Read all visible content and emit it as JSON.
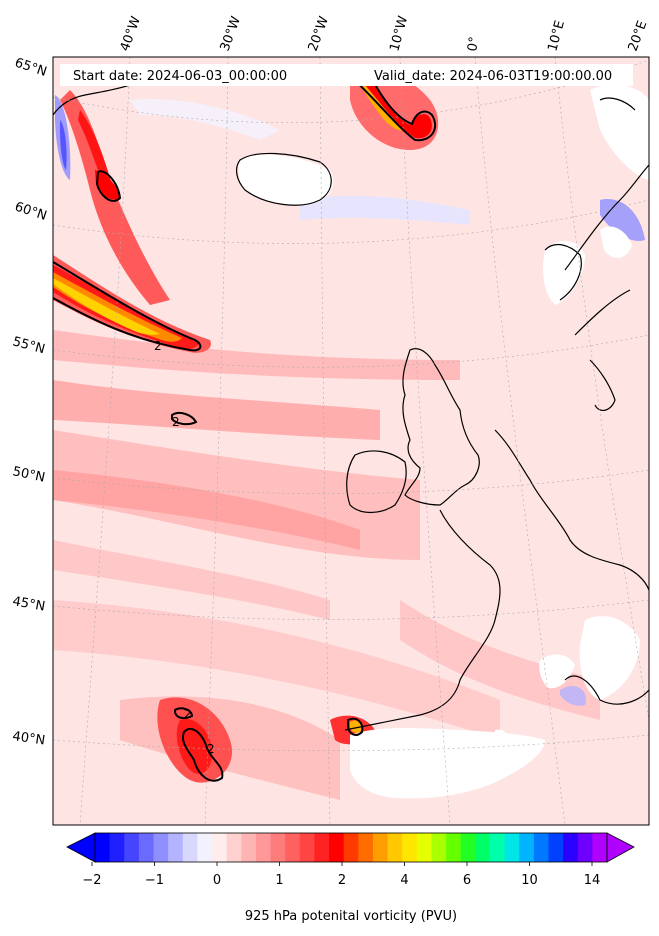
{
  "header": {
    "start_date": "Start date: 2024-06-03_00:00:00",
    "valid_date": "Valid_date: 2024-06-03T19:00:00.00"
  },
  "graticule": {
    "lon_labels": [
      "40°W",
      "30°W",
      "20°W",
      "10°W",
      "0°",
      "10°E",
      "20°E"
    ],
    "lat_labels": [
      "65°N",
      "60°N",
      "55°N",
      "50°N",
      "45°N",
      "40°N"
    ]
  },
  "contour_labels": [
    "2",
    "2",
    "2",
    "2"
  ],
  "colorbar": {
    "ticks": [
      "−2",
      "−1",
      "0",
      "1",
      "2",
      "4",
      "6",
      "10",
      "14"
    ],
    "label": "925 hPa potenital vorticity (PVU)",
    "colors": [
      "#0000ff",
      "#2020ff",
      "#4545ff",
      "#6a6aff",
      "#8f8fff",
      "#b3b3ff",
      "#d8d8ff",
      "#f2f2ff",
      "#ffecec",
      "#ffd0d0",
      "#ffb4b4",
      "#ff9898",
      "#ff7c7c",
      "#ff6060",
      "#ff4444",
      "#ff2222",
      "#ff0000",
      "#ff3a00",
      "#ff6c00",
      "#ff9e00",
      "#ffc800",
      "#ffe600",
      "#e6ff00",
      "#aaff00",
      "#66ff00",
      "#22ff22",
      "#00ff66",
      "#00ffaa",
      "#00e6e6",
      "#00b4ff",
      "#0078ff",
      "#0040ff",
      "#2a00ff",
      "#6e00ff",
      "#b000ff"
    ],
    "left_extend_color": "#0000ff",
    "right_extend_color": "#b000ff"
  }
}
